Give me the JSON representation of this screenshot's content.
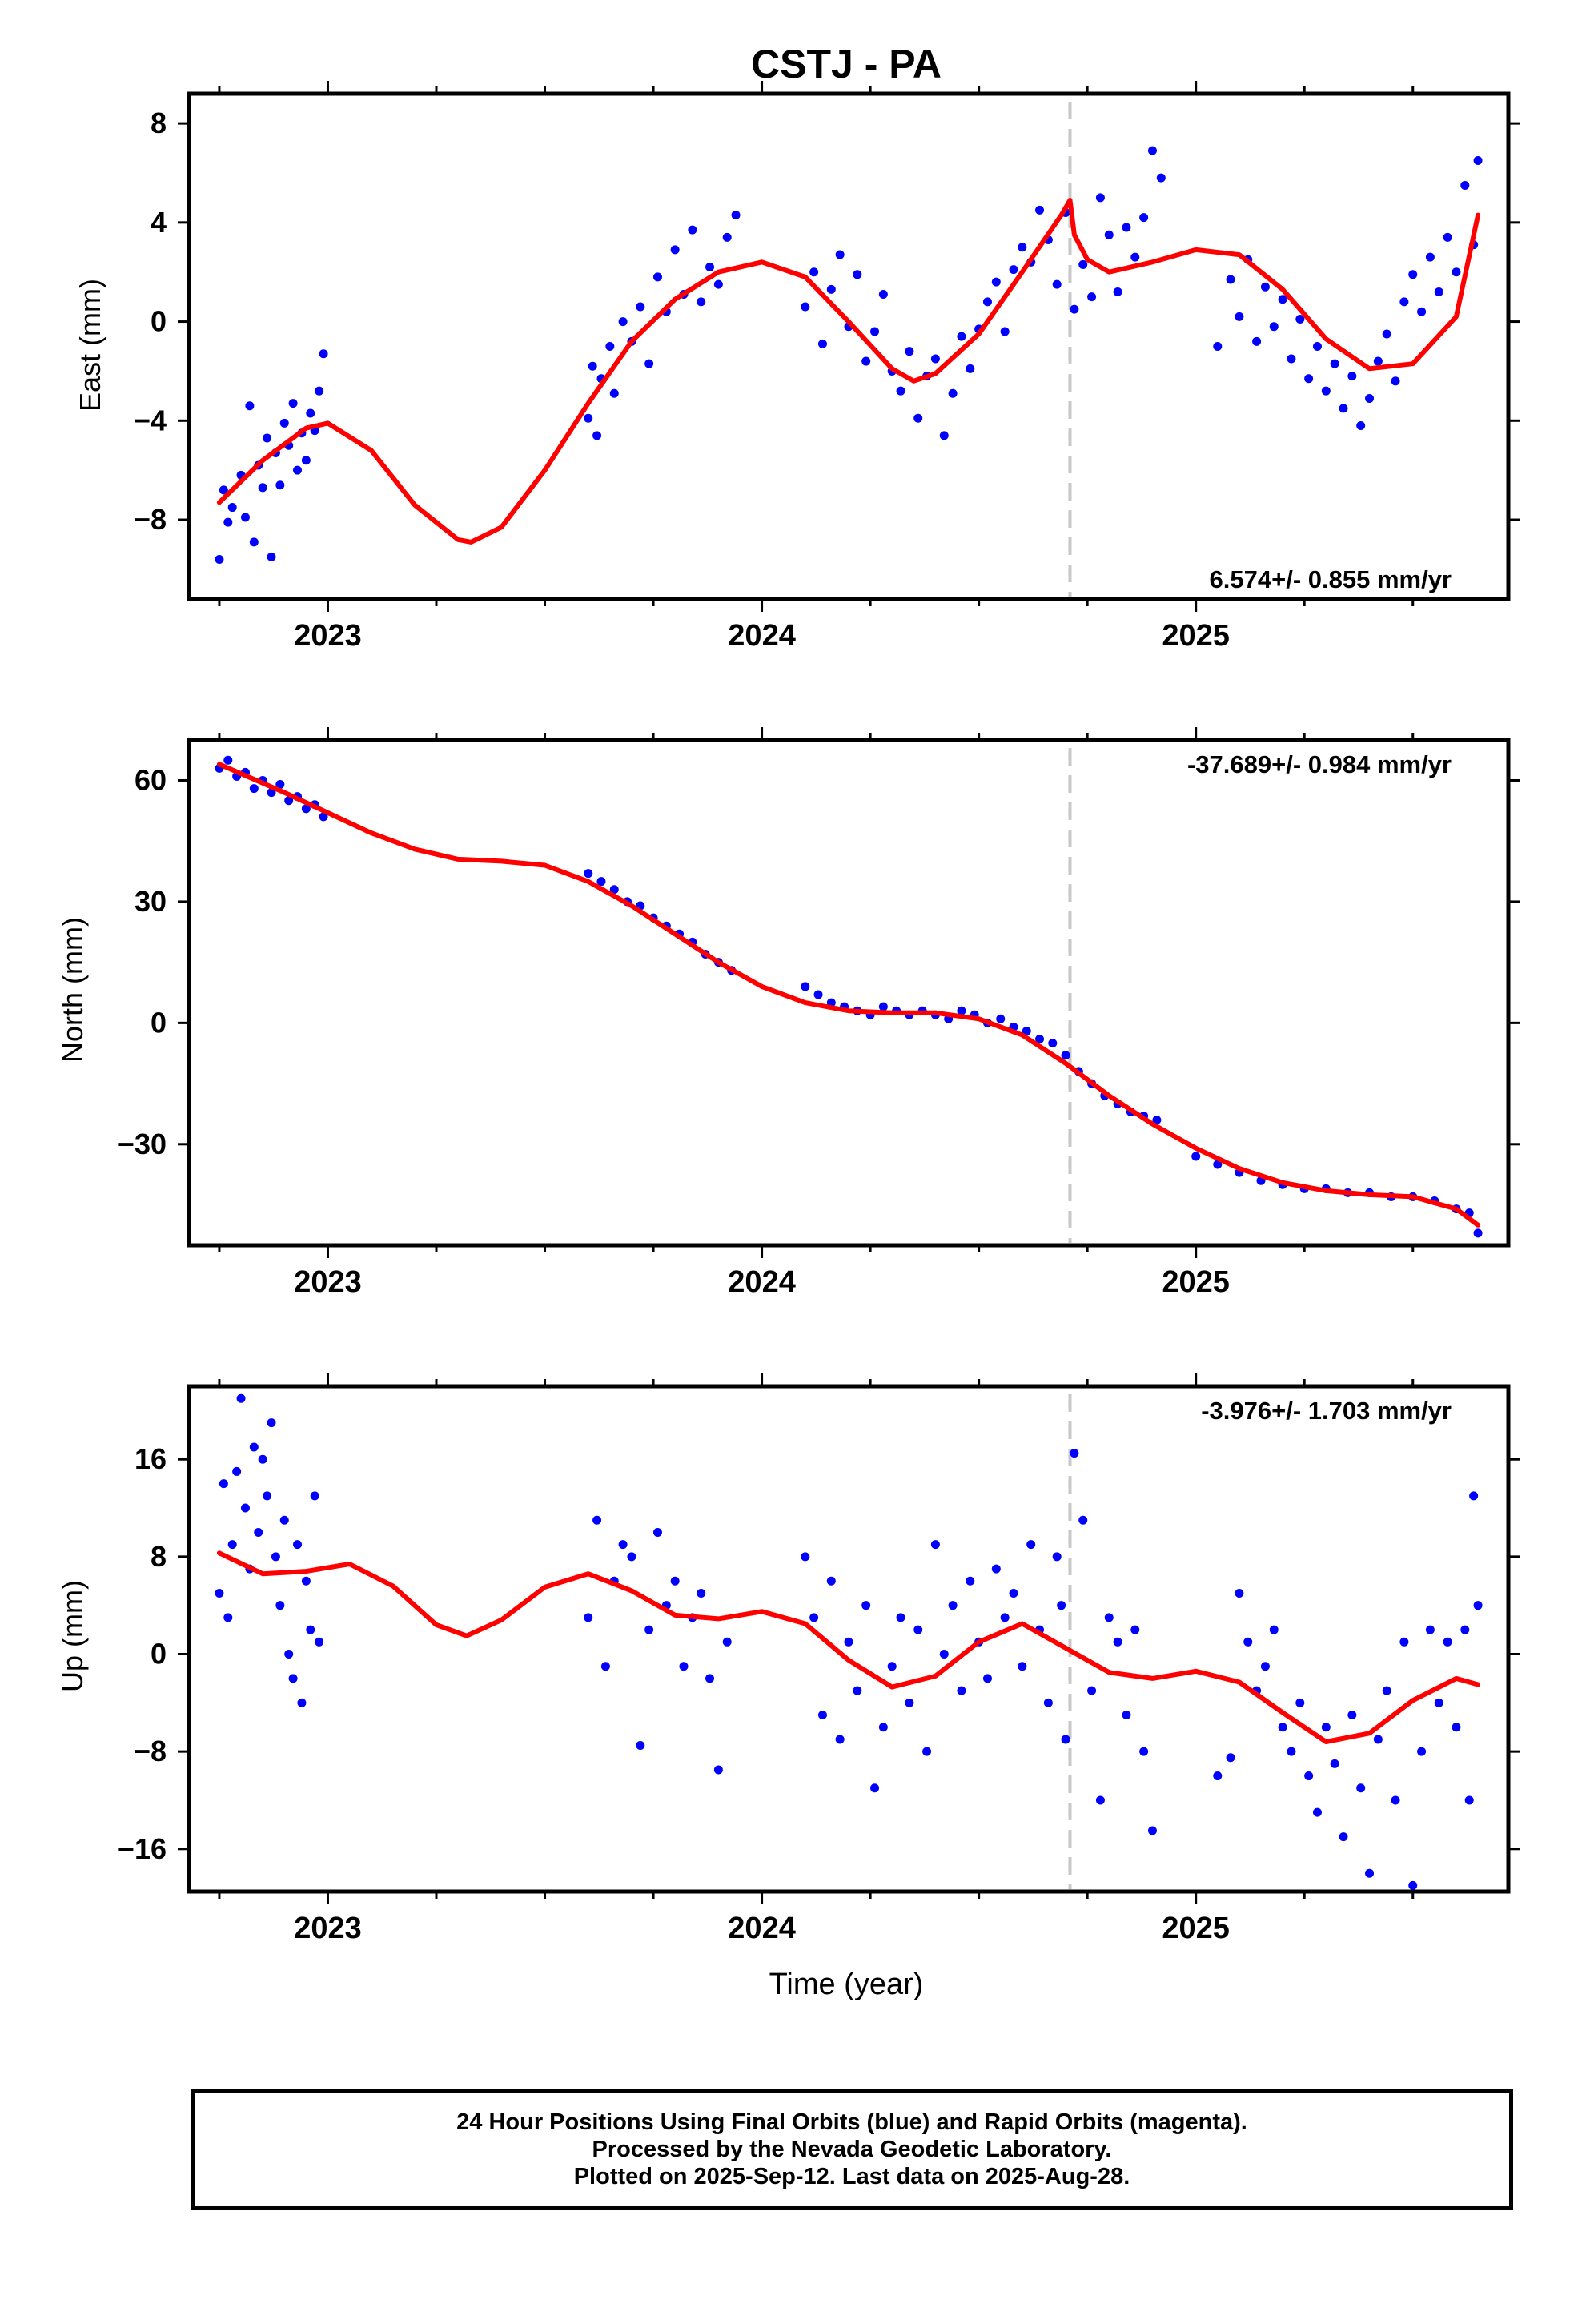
{
  "title": "CSTJ - PA",
  "xlabel": "Time (year)",
  "footer": {
    "line1": "24 Hour Positions Using Final Orbits (blue) and Rapid Orbits (magenta).",
    "line2": "Processed by the Nevada Geodetic Laboratory.",
    "line3": "Plotted on 2025-Sep-12. Last data on 2025-Aug-28."
  },
  "colors": {
    "final_orbits": "#0000ff",
    "model": "#ff0000",
    "equipment_change": "#c8c8c8",
    "frame": "#000000"
  },
  "chart_data": [
    {
      "type": "scatter",
      "panel": "east",
      "ylabel": "East (mm)",
      "rate_label": "6.574+/- 0.855 mm/yr",
      "xlim": [
        2022.68,
        2025.72
      ],
      "ylim": [
        -11.2,
        9.2
      ],
      "yticks": [
        8,
        4,
        0,
        -4,
        -8
      ],
      "ytick_labels": [
        "8",
        "4",
        "0",
        "−4",
        "−8"
      ],
      "xticks": [
        2023,
        2024,
        2025
      ],
      "xtick_labels": [
        "2023",
        "2024",
        "2025"
      ],
      "equipment_change": 2024.71,
      "model": {
        "x": [
          2022.75,
          2022.85,
          2022.95,
          2023.0,
          2023.1,
          2023.2,
          2023.3,
          2023.33,
          2023.4,
          2023.5,
          2023.6,
          2023.7,
          2023.8,
          2023.9,
          2024.0,
          2024.1,
          2024.2,
          2024.3,
          2024.35,
          2024.4,
          2024.5,
          2024.6,
          2024.69,
          2024.7,
          2024.71,
          2024.72,
          2024.75,
          2024.8,
          2024.9,
          2025.0,
          2025.1,
          2025.2,
          2025.3,
          2025.4,
          2025.5,
          2025.6,
          2025.65
        ],
        "y": [
          -7.3,
          -5.6,
          -4.3,
          -4.1,
          -5.2,
          -7.4,
          -8.8,
          -8.9,
          -8.3,
          -6.0,
          -3.3,
          -0.8,
          0.9,
          2.0,
          2.4,
          1.8,
          0.0,
          -1.9,
          -2.4,
          -2.1,
          -0.5,
          2.0,
          4.3,
          4.6,
          4.9,
          3.5,
          2.5,
          2.0,
          2.4,
          2.9,
          2.7,
          1.3,
          -0.7,
          -1.9,
          -1.7,
          0.2,
          4.3
        ]
      },
      "observations": {
        "x": [
          2022.75,
          2022.76,
          2022.77,
          2022.78,
          2022.8,
          2022.81,
          2022.82,
          2022.83,
          2022.84,
          2022.85,
          2022.86,
          2022.87,
          2022.88,
          2022.89,
          2022.9,
          2022.91,
          2022.92,
          2022.93,
          2022.94,
          2022.95,
          2022.96,
          2022.97,
          2022.98,
          2022.99,
          2023.6,
          2023.61,
          2023.62,
          2023.63,
          2023.65,
          2023.66,
          2023.68,
          2023.7,
          2023.72,
          2023.74,
          2023.76,
          2023.78,
          2023.8,
          2023.82,
          2023.84,
          2023.86,
          2023.88,
          2023.9,
          2023.92,
          2023.94,
          2024.1,
          2024.12,
          2024.14,
          2024.16,
          2024.18,
          2024.2,
          2024.22,
          2024.24,
          2024.26,
          2024.28,
          2024.3,
          2024.32,
          2024.34,
          2024.36,
          2024.38,
          2024.4,
          2024.42,
          2024.44,
          2024.46,
          2024.48,
          2024.5,
          2024.52,
          2024.54,
          2024.56,
          2024.58,
          2024.6,
          2024.62,
          2024.64,
          2024.66,
          2024.68,
          2024.7,
          2024.72,
          2024.74,
          2024.76,
          2024.78,
          2024.8,
          2024.82,
          2024.84,
          2024.86,
          2024.88,
          2024.9,
          2024.92,
          2025.05,
          2025.08,
          2025.1,
          2025.12,
          2025.14,
          2025.16,
          2025.18,
          2025.2,
          2025.22,
          2025.24,
          2025.26,
          2025.28,
          2025.3,
          2025.32,
          2025.34,
          2025.36,
          2025.38,
          2025.4,
          2025.42,
          2025.44,
          2025.46,
          2025.48,
          2025.5,
          2025.52,
          2025.54,
          2025.56,
          2025.58,
          2025.6,
          2025.62,
          2025.64,
          2025.65
        ],
        "y": [
          -9.6,
          -6.8,
          -8.1,
          -7.5,
          -6.2,
          -7.9,
          -3.4,
          -8.9,
          -5.8,
          -6.7,
          -4.7,
          -9.5,
          -5.3,
          -6.6,
          -4.1,
          -5.0,
          -3.3,
          -6.0,
          -4.5,
          -5.6,
          -3.7,
          -4.4,
          -2.8,
          -1.3,
          -3.9,
          -1.8,
          -4.6,
          -2.3,
          -1.0,
          -2.9,
          0.0,
          -0.8,
          0.6,
          -1.7,
          1.8,
          0.4,
          2.9,
          1.1,
          3.7,
          0.8,
          2.2,
          1.5,
          3.4,
          4.3,
          0.6,
          2.0,
          -0.9,
          1.3,
          2.7,
          -0.2,
          1.9,
          -1.6,
          -0.4,
          1.1,
          -2.0,
          -2.8,
          -1.2,
          -3.9,
          -2.2,
          -1.5,
          -4.6,
          -2.9,
          -0.6,
          -1.9,
          -0.3,
          0.8,
          1.6,
          -0.4,
          2.1,
          3.0,
          2.4,
          4.5,
          3.3,
          1.5,
          4.4,
          0.5,
          2.3,
          1.0,
          5.0,
          3.5,
          1.2,
          3.8,
          2.6,
          4.2,
          6.9,
          5.8,
          -1.0,
          1.7,
          0.2,
          2.5,
          -0.8,
          1.4,
          -0.2,
          0.9,
          -1.5,
          0.1,
          -2.3,
          -1.0,
          -2.8,
          -1.7,
          -3.5,
          -2.2,
          -4.2,
          -3.1,
          -1.6,
          -0.5,
          -2.4,
          0.8,
          1.9,
          0.4,
          2.6,
          1.2,
          3.4,
          2.0,
          5.5,
          3.1,
          6.5
        ]
      }
    },
    {
      "type": "scatter",
      "panel": "north",
      "ylabel": "North (mm)",
      "rate_label": "-37.689+/- 0.984 mm/yr",
      "xlim": [
        2022.68,
        2025.72
      ],
      "ylim": [
        -55,
        70
      ],
      "yticks": [
        60,
        30,
        0,
        -30
      ],
      "ytick_labels": [
        "60",
        "30",
        "0",
        "−30"
      ],
      "xticks": [
        2023,
        2024,
        2025
      ],
      "xtick_labels": [
        "2023",
        "2024",
        "2025"
      ],
      "equipment_change": 2024.71,
      "model": {
        "x": [
          2022.75,
          2022.9,
          2023.0,
          2023.1,
          2023.2,
          2023.3,
          2023.4,
          2023.5,
          2023.6,
          2023.7,
          2023.8,
          2023.9,
          2024.0,
          2024.1,
          2024.2,
          2024.3,
          2024.4,
          2024.5,
          2024.6,
          2024.7,
          2024.8,
          2024.9,
          2025.0,
          2025.1,
          2025.2,
          2025.3,
          2025.4,
          2025.5,
          2025.6,
          2025.65
        ],
        "y": [
          64,
          57,
          52,
          47,
          43,
          40.5,
          40,
          39,
          35,
          29,
          22,
          15,
          9,
          5,
          3,
          2.5,
          2.5,
          1,
          -3,
          -10,
          -18,
          -25,
          -31,
          -36,
          -39.5,
          -41.5,
          -42.5,
          -43,
          -46,
          -50
        ]
      },
      "observations": {
        "x": [
          2022.75,
          2022.77,
          2022.79,
          2022.81,
          2022.83,
          2022.85,
          2022.87,
          2022.89,
          2022.91,
          2022.93,
          2022.95,
          2022.97,
          2022.99,
          2023.6,
          2023.63,
          2023.66,
          2023.69,
          2023.72,
          2023.75,
          2023.78,
          2023.81,
          2023.84,
          2023.87,
          2023.9,
          2023.93,
          2024.1,
          2024.13,
          2024.16,
          2024.19,
          2024.22,
          2024.25,
          2024.28,
          2024.31,
          2024.34,
          2024.37,
          2024.4,
          2024.43,
          2024.46,
          2024.49,
          2024.52,
          2024.55,
          2024.58,
          2024.61,
          2024.64,
          2024.67,
          2024.7,
          2024.73,
          2024.76,
          2024.79,
          2024.82,
          2024.85,
          2024.88,
          2024.91,
          2025.0,
          2025.05,
          2025.1,
          2025.15,
          2025.2,
          2025.25,
          2025.3,
          2025.35,
          2025.4,
          2025.45,
          2025.5,
          2025.55,
          2025.6,
          2025.63,
          2025.65
        ],
        "y": [
          63,
          65,
          61,
          62,
          58,
          60,
          57,
          59,
          55,
          56,
          53,
          54,
          51,
          37,
          35,
          33,
          30,
          29,
          26,
          24,
          22,
          20,
          17,
          15,
          13,
          9,
          7,
          5,
          4,
          3,
          2,
          4,
          3,
          2,
          3,
          2,
          1,
          3,
          2,
          0,
          1,
          -1,
          -2,
          -4,
          -5,
          -8,
          -12,
          -15,
          -18,
          -20,
          -22,
          -23,
          -24,
          -33,
          -35,
          -37,
          -39,
          -40,
          -41,
          -41,
          -42,
          -42,
          -43,
          -43,
          -44,
          -46,
          -47,
          -52
        ]
      }
    },
    {
      "type": "scatter",
      "panel": "up",
      "ylabel": "Up (mm)",
      "rate_label": "-3.976+/- 1.703 mm/yr",
      "xlim": [
        2022.68,
        2025.72
      ],
      "ylim": [
        -19.5,
        22
      ],
      "yticks": [
        16,
        8,
        0,
        -8,
        -16
      ],
      "ytick_labels": [
        "16",
        "8",
        "0",
        "−8",
        "−16"
      ],
      "xticks": [
        2023,
        2024,
        2025
      ],
      "xtick_labels": [
        "2023",
        "2024",
        "2025"
      ],
      "equipment_change": 2024.71,
      "model": {
        "x": [
          2022.75,
          2022.85,
          2022.95,
          2023.05,
          2023.15,
          2023.25,
          2023.32,
          2023.4,
          2023.5,
          2023.6,
          2023.7,
          2023.8,
          2023.9,
          2024.0,
          2024.1,
          2024.2,
          2024.3,
          2024.4,
          2024.5,
          2024.6,
          2024.7,
          2024.8,
          2024.9,
          2025.0,
          2025.1,
          2025.2,
          2025.3,
          2025.4,
          2025.5,
          2025.6,
          2025.65
        ],
        "y": [
          8.3,
          6.6,
          6.8,
          7.4,
          5.6,
          2.4,
          1.5,
          2.8,
          5.5,
          6.6,
          5.2,
          3.2,
          2.9,
          3.5,
          2.5,
          -0.5,
          -2.7,
          -1.8,
          1.0,
          2.5,
          0.5,
          -1.5,
          -2.0,
          -1.4,
          -2.3,
          -4.8,
          -7.2,
          -6.5,
          -3.8,
          -2.0,
          -2.5
        ]
      },
      "observations": {
        "x": [
          2022.75,
          2022.76,
          2022.77,
          2022.78,
          2022.79,
          2022.8,
          2022.81,
          2022.82,
          2022.83,
          2022.84,
          2022.85,
          2022.86,
          2022.87,
          2022.88,
          2022.89,
          2022.9,
          2022.91,
          2022.92,
          2022.93,
          2022.94,
          2022.95,
          2022.96,
          2022.97,
          2022.98,
          2023.6,
          2023.62,
          2023.64,
          2023.66,
          2023.68,
          2023.7,
          2023.72,
          2023.74,
          2023.76,
          2023.78,
          2023.8,
          2023.82,
          2023.84,
          2023.86,
          2023.88,
          2023.9,
          2023.92,
          2024.1,
          2024.12,
          2024.14,
          2024.16,
          2024.18,
          2024.2,
          2024.22,
          2024.24,
          2024.26,
          2024.28,
          2024.3,
          2024.32,
          2024.34,
          2024.36,
          2024.38,
          2024.4,
          2024.42,
          2024.44,
          2024.46,
          2024.48,
          2024.5,
          2024.52,
          2024.54,
          2024.56,
          2024.58,
          2024.6,
          2024.62,
          2024.64,
          2024.66,
          2024.68,
          2024.69,
          2024.7,
          2024.72,
          2024.74,
          2024.76,
          2024.78,
          2024.8,
          2024.82,
          2024.84,
          2024.86,
          2024.88,
          2024.9,
          2025.05,
          2025.08,
          2025.1,
          2025.12,
          2025.14,
          2025.16,
          2025.18,
          2025.2,
          2025.22,
          2025.24,
          2025.26,
          2025.28,
          2025.3,
          2025.32,
          2025.34,
          2025.36,
          2025.38,
          2025.4,
          2025.42,
          2025.44,
          2025.46,
          2025.48,
          2025.5,
          2025.52,
          2025.54,
          2025.56,
          2025.58,
          2025.6,
          2025.62,
          2025.63,
          2025.64,
          2025.65
        ],
        "y": [
          5,
          14,
          3,
          9,
          15,
          21,
          12,
          7,
          17,
          10,
          16,
          13,
          19,
          8,
          4,
          11,
          0,
          -2,
          9,
          -4,
          6,
          2,
          13,
          1,
          3,
          11,
          -1,
          6,
          9,
          8,
          -7.5,
          2,
          10,
          4,
          6,
          -1,
          3,
          5,
          -2,
          -9.5,
          1,
          8,
          3,
          -5,
          6,
          -7,
          1,
          -3,
          4,
          -11,
          -6,
          -1,
          3,
          -4,
          2,
          -8,
          9,
          0,
          4,
          -3,
          6,
          1,
          -2,
          7,
          3,
          5,
          -1,
          9,
          2,
          -4,
          8,
          4,
          -7,
          16.5,
          11,
          -3,
          -12,
          3,
          1,
          -5,
          2,
          -8,
          -14.5,
          -10,
          -8.5,
          5,
          1,
          -3,
          -1,
          2,
          -6,
          -8,
          -4,
          -10,
          -13,
          -6,
          -9,
          -15,
          -5,
          -11,
          -18,
          -7,
          -3,
          -12,
          1,
          -19,
          -8,
          2,
          -4,
          1,
          -6,
          2,
          -12,
          13,
          4
        ]
      }
    }
  ]
}
